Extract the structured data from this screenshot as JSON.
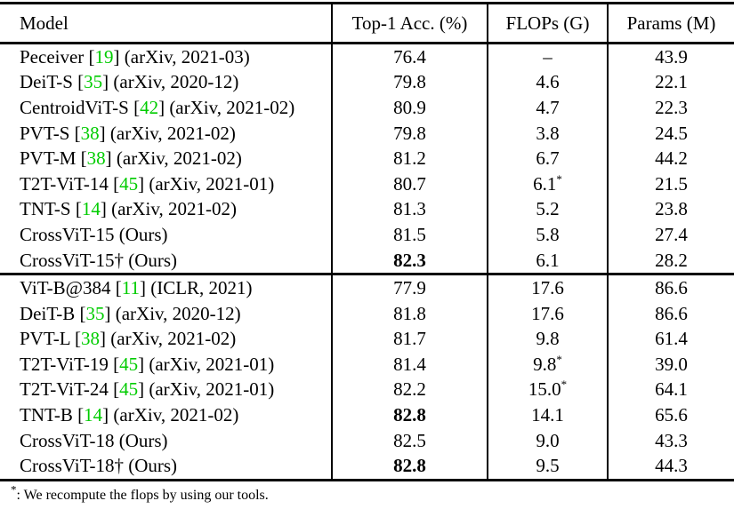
{
  "colors": {
    "cite_green": "#00cc00",
    "rule_black": "#000000",
    "background": "#ffffff"
  },
  "table": {
    "columns": [
      "Model",
      "Top-1 Acc. (%)",
      "FLOPs (G)",
      "Params (M)"
    ],
    "sections": [
      {
        "rows": [
          {
            "model": {
              "name": "Peceiver",
              "cite": "19",
              "suffix": "(arXiv, 2021-03)"
            },
            "top1": "76.4",
            "top1_bold": false,
            "flops": "–",
            "flops_star": false,
            "params": "43.9"
          },
          {
            "model": {
              "name": "DeiT-S",
              "cite": "35",
              "suffix": "(arXiv, 2020-12)"
            },
            "top1": "79.8",
            "top1_bold": false,
            "flops": "4.6",
            "flops_star": false,
            "params": "22.1"
          },
          {
            "model": {
              "name": "CentroidViT-S",
              "cite": "42",
              "suffix": "(arXiv, 2021-02)"
            },
            "top1": "80.9",
            "top1_bold": false,
            "flops": "4.7",
            "flops_star": false,
            "params": "22.3"
          },
          {
            "model": {
              "name": "PVT-S",
              "cite": "38",
              "suffix": "(arXiv, 2021-02)"
            },
            "top1": "79.8",
            "top1_bold": false,
            "flops": "3.8",
            "flops_star": false,
            "params": "24.5"
          },
          {
            "model": {
              "name": "PVT-M",
              "cite": "38",
              "suffix": "(arXiv, 2021-02)"
            },
            "top1": "81.2",
            "top1_bold": false,
            "flops": "6.7",
            "flops_star": false,
            "params": "44.2"
          },
          {
            "model": {
              "name": "T2T-ViT-14",
              "cite": "45",
              "suffix": "(arXiv, 2021-01)"
            },
            "top1": "80.7",
            "top1_bold": false,
            "flops": "6.1",
            "flops_star": true,
            "params": "21.5"
          },
          {
            "model": {
              "name": "TNT-S",
              "cite": "14",
              "suffix": "(arXiv, 2021-02)"
            },
            "top1": "81.3",
            "top1_bold": false,
            "flops": "5.2",
            "flops_star": false,
            "params": "23.8"
          },
          {
            "model": {
              "name": "CrossViT-15",
              "cite": null,
              "suffix": "(Ours)"
            },
            "top1": "81.5",
            "top1_bold": false,
            "flops": "5.8",
            "flops_star": false,
            "params": "27.4"
          },
          {
            "model": {
              "name": "CrossViT-15†",
              "cite": null,
              "suffix": "(Ours)"
            },
            "top1": "82.3",
            "top1_bold": true,
            "flops": "6.1",
            "flops_star": false,
            "params": "28.2"
          }
        ]
      },
      {
        "rows": [
          {
            "model": {
              "name": "ViT-B@384",
              "cite": "11",
              "suffix": "(ICLR, 2021)"
            },
            "top1": "77.9",
            "top1_bold": false,
            "flops": "17.6",
            "flops_star": false,
            "params": "86.6"
          },
          {
            "model": {
              "name": "DeiT-B",
              "cite": "35",
              "suffix": "(arXiv, 2020-12)"
            },
            "top1": "81.8",
            "top1_bold": false,
            "flops": "17.6",
            "flops_star": false,
            "params": "86.6"
          },
          {
            "model": {
              "name": "PVT-L",
              "cite": "38",
              "suffix": "(arXiv, 2021-02)"
            },
            "top1": "81.7",
            "top1_bold": false,
            "flops": "9.8",
            "flops_star": false,
            "params": "61.4"
          },
          {
            "model": {
              "name": "T2T-ViT-19",
              "cite": "45",
              "suffix": "(arXiv, 2021-01)"
            },
            "top1": "81.4",
            "top1_bold": false,
            "flops": "9.8",
            "flops_star": true,
            "params": "39.0"
          },
          {
            "model": {
              "name": "T2T-ViT-24",
              "cite": "45",
              "suffix": "(arXiv, 2021-01)"
            },
            "top1": "82.2",
            "top1_bold": false,
            "flops": "15.0",
            "flops_star": true,
            "params": "64.1"
          },
          {
            "model": {
              "name": "TNT-B",
              "cite": "14",
              "suffix": "(arXiv, 2021-02)"
            },
            "top1": "82.8",
            "top1_bold": true,
            "flops": "14.1",
            "flops_star": false,
            "params": "65.6"
          },
          {
            "model": {
              "name": "CrossViT-18",
              "cite": null,
              "suffix": "(Ours)"
            },
            "top1": "82.5",
            "top1_bold": false,
            "flops": "9.0",
            "flops_star": false,
            "params": "43.3"
          },
          {
            "model": {
              "name": "CrossViT-18†",
              "cite": null,
              "suffix": "(Ours)"
            },
            "top1": "82.8",
            "top1_bold": true,
            "flops": "9.5",
            "flops_star": false,
            "params": "44.3"
          }
        ]
      }
    ],
    "footnote": {
      "marker": "*",
      "text": ": We recompute the flops by using our tools."
    }
  }
}
